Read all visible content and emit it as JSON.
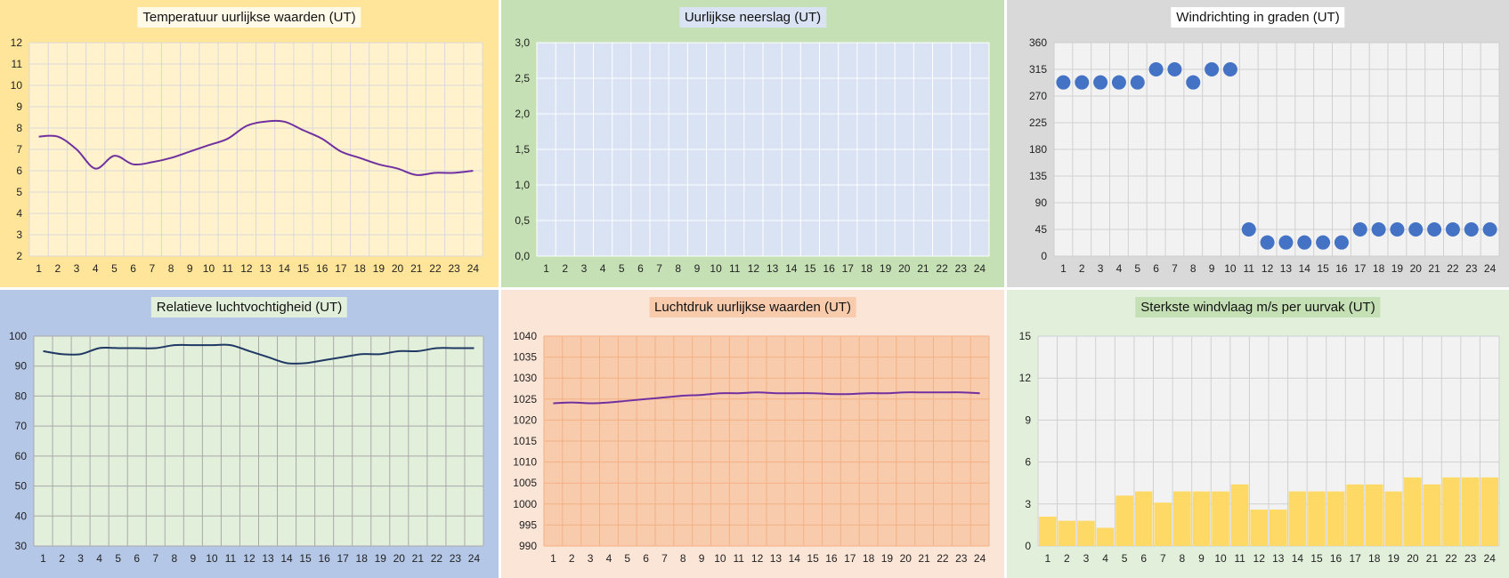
{
  "chart_data": [
    {
      "id": "temperature",
      "type": "line",
      "title": "Temperatuur uurlijkse waarden (UT)",
      "categories": [
        "1",
        "2",
        "3",
        "4",
        "5",
        "6",
        "7",
        "8",
        "9",
        "10",
        "11",
        "12",
        "13",
        "14",
        "15",
        "16",
        "17",
        "18",
        "19",
        "20",
        "21",
        "22",
        "23",
        "24"
      ],
      "values": [
        7.6,
        7.6,
        7.0,
        6.1,
        6.7,
        6.3,
        6.4,
        6.6,
        6.9,
        7.2,
        7.5,
        8.1,
        8.3,
        8.3,
        7.9,
        7.5,
        6.9,
        6.6,
        6.3,
        6.1,
        5.8,
        5.9,
        5.9,
        6.0
      ],
      "ylim": [
        2,
        12
      ],
      "yticks": [
        "2",
        "3",
        "4",
        "5",
        "6",
        "7",
        "8",
        "9",
        "10",
        "11",
        "12"
      ],
      "colors": {
        "panel": "#ffe599",
        "plot": "#fff2cc",
        "grid": "#d9d9d9",
        "line": "#7030a0",
        "title_bg": "#fff9e8"
      }
    },
    {
      "id": "precipitation",
      "type": "bar",
      "title": "Uurlijkse neerslag  (UT)",
      "categories": [
        "1",
        "2",
        "3",
        "4",
        "5",
        "6",
        "7",
        "8",
        "9",
        "10",
        "11",
        "12",
        "13",
        "14",
        "15",
        "16",
        "17",
        "18",
        "19",
        "20",
        "21",
        "22",
        "23",
        "24"
      ],
      "values": [
        0,
        0,
        0,
        0,
        0,
        0,
        0,
        0,
        0,
        0,
        0,
        0,
        0,
        0,
        0,
        0,
        0,
        0,
        0,
        0,
        0,
        0,
        0,
        0
      ],
      "ylim": [
        0,
        3
      ],
      "yticks": [
        "0,0",
        "0,5",
        "1,0",
        "1,5",
        "2,0",
        "2,5",
        "3,0"
      ],
      "colors": {
        "panel": "#c5e0b4",
        "plot": "#dae3f3",
        "grid": "#ffffff",
        "title_bg": "#dae3f3"
      }
    },
    {
      "id": "wind_direction",
      "type": "scatter",
      "title": "Windrichting in graden (UT)",
      "categories": [
        "1",
        "2",
        "3",
        "4",
        "5",
        "6",
        "7",
        "8",
        "9",
        "10",
        "11",
        "12",
        "13",
        "14",
        "15",
        "16",
        "17",
        "18",
        "19",
        "20",
        "21",
        "22",
        "23",
        "24"
      ],
      "values": [
        293,
        293,
        293,
        293,
        293,
        315,
        315,
        293,
        315,
        315,
        45,
        23,
        23,
        23,
        23,
        23,
        45,
        45,
        45,
        45,
        45,
        45,
        45,
        45
      ],
      "ylim": [
        0,
        360
      ],
      "yticks": [
        "0",
        "45",
        "90",
        "135",
        "180",
        "225",
        "270",
        "315",
        "360"
      ],
      "colors": {
        "panel": "#d9d9d9",
        "plot": "#f2f2f2",
        "grid": "#d0d0d0",
        "marker": "#4472c4",
        "title_bg": "#ffffff"
      }
    },
    {
      "id": "humidity",
      "type": "line",
      "title": "Relatieve luchtvochtigheid (UT)",
      "categories": [
        "1",
        "2",
        "3",
        "4",
        "5",
        "6",
        "7",
        "8",
        "9",
        "10",
        "11",
        "12",
        "13",
        "14",
        "15",
        "16",
        "17",
        "18",
        "19",
        "20",
        "21",
        "22",
        "23",
        "24"
      ],
      "values": [
        95,
        94,
        94,
        96,
        96,
        96,
        96,
        97,
        97,
        97,
        97,
        95,
        93,
        91,
        91,
        92,
        93,
        94,
        94,
        95,
        95,
        96,
        96,
        96
      ],
      "ylim": [
        30,
        100
      ],
      "yticks": [
        "30",
        "40",
        "50",
        "60",
        "70",
        "80",
        "90",
        "100"
      ],
      "colors": {
        "panel": "#b4c7e7",
        "plot": "#e2efda",
        "grid": "#a9a9a9",
        "line": "#1f3864",
        "title_bg": "#e2efda"
      }
    },
    {
      "id": "pressure",
      "type": "line",
      "title": "Luchtdruk uurlijkse waarden (UT)",
      "categories": [
        "1",
        "2",
        "3",
        "4",
        "5",
        "6",
        "7",
        "8",
        "9",
        "10",
        "11",
        "12",
        "13",
        "14",
        "15",
        "16",
        "17",
        "18",
        "19",
        "20",
        "21",
        "22",
        "23",
        "24"
      ],
      "values": [
        1024,
        1024.2,
        1024,
        1024.2,
        1024.6,
        1025,
        1025.4,
        1025.8,
        1026,
        1026.4,
        1026.4,
        1026.6,
        1026.4,
        1026.4,
        1026.4,
        1026.2,
        1026.2,
        1026.4,
        1026.4,
        1026.6,
        1026.6,
        1026.6,
        1026.6,
        1026.4
      ],
      "ylim": [
        990,
        1040
      ],
      "yticks": [
        "990",
        "995",
        "1000",
        "1005",
        "1010",
        "1015",
        "1020",
        "1025",
        "1030",
        "1035",
        "1040"
      ],
      "colors": {
        "panel": "#fbe5d6",
        "plot": "#f8cbad",
        "grid": "#f4b183",
        "line": "#7030a0",
        "title_bg": "#f8cbad"
      }
    },
    {
      "id": "wind_gust",
      "type": "bar",
      "title": "Sterkste windvlaag m/s per uurvak (UT)",
      "categories": [
        "1",
        "2",
        "3",
        "4",
        "5",
        "6",
        "7",
        "8",
        "9",
        "10",
        "11",
        "12",
        "13",
        "14",
        "15",
        "16",
        "17",
        "18",
        "19",
        "20",
        "21",
        "22",
        "23",
        "24"
      ],
      "values": [
        2.1,
        1.8,
        1.8,
        1.3,
        3.6,
        3.9,
        3.1,
        3.9,
        3.9,
        3.9,
        4.4,
        2.6,
        2.6,
        3.9,
        3.9,
        3.9,
        4.4,
        4.4,
        3.9,
        4.9,
        4.4,
        4.9,
        4.9,
        4.9
      ],
      "ylim": [
        0,
        15
      ],
      "yticks": [
        "0",
        "3",
        "6",
        "9",
        "12",
        "15"
      ],
      "colors": {
        "panel": "#e2efda",
        "plot": "#f2f2f2",
        "grid": "#d0d0d0",
        "bar": "#ffd966",
        "title_bg": "#c5e0b4"
      }
    }
  ]
}
